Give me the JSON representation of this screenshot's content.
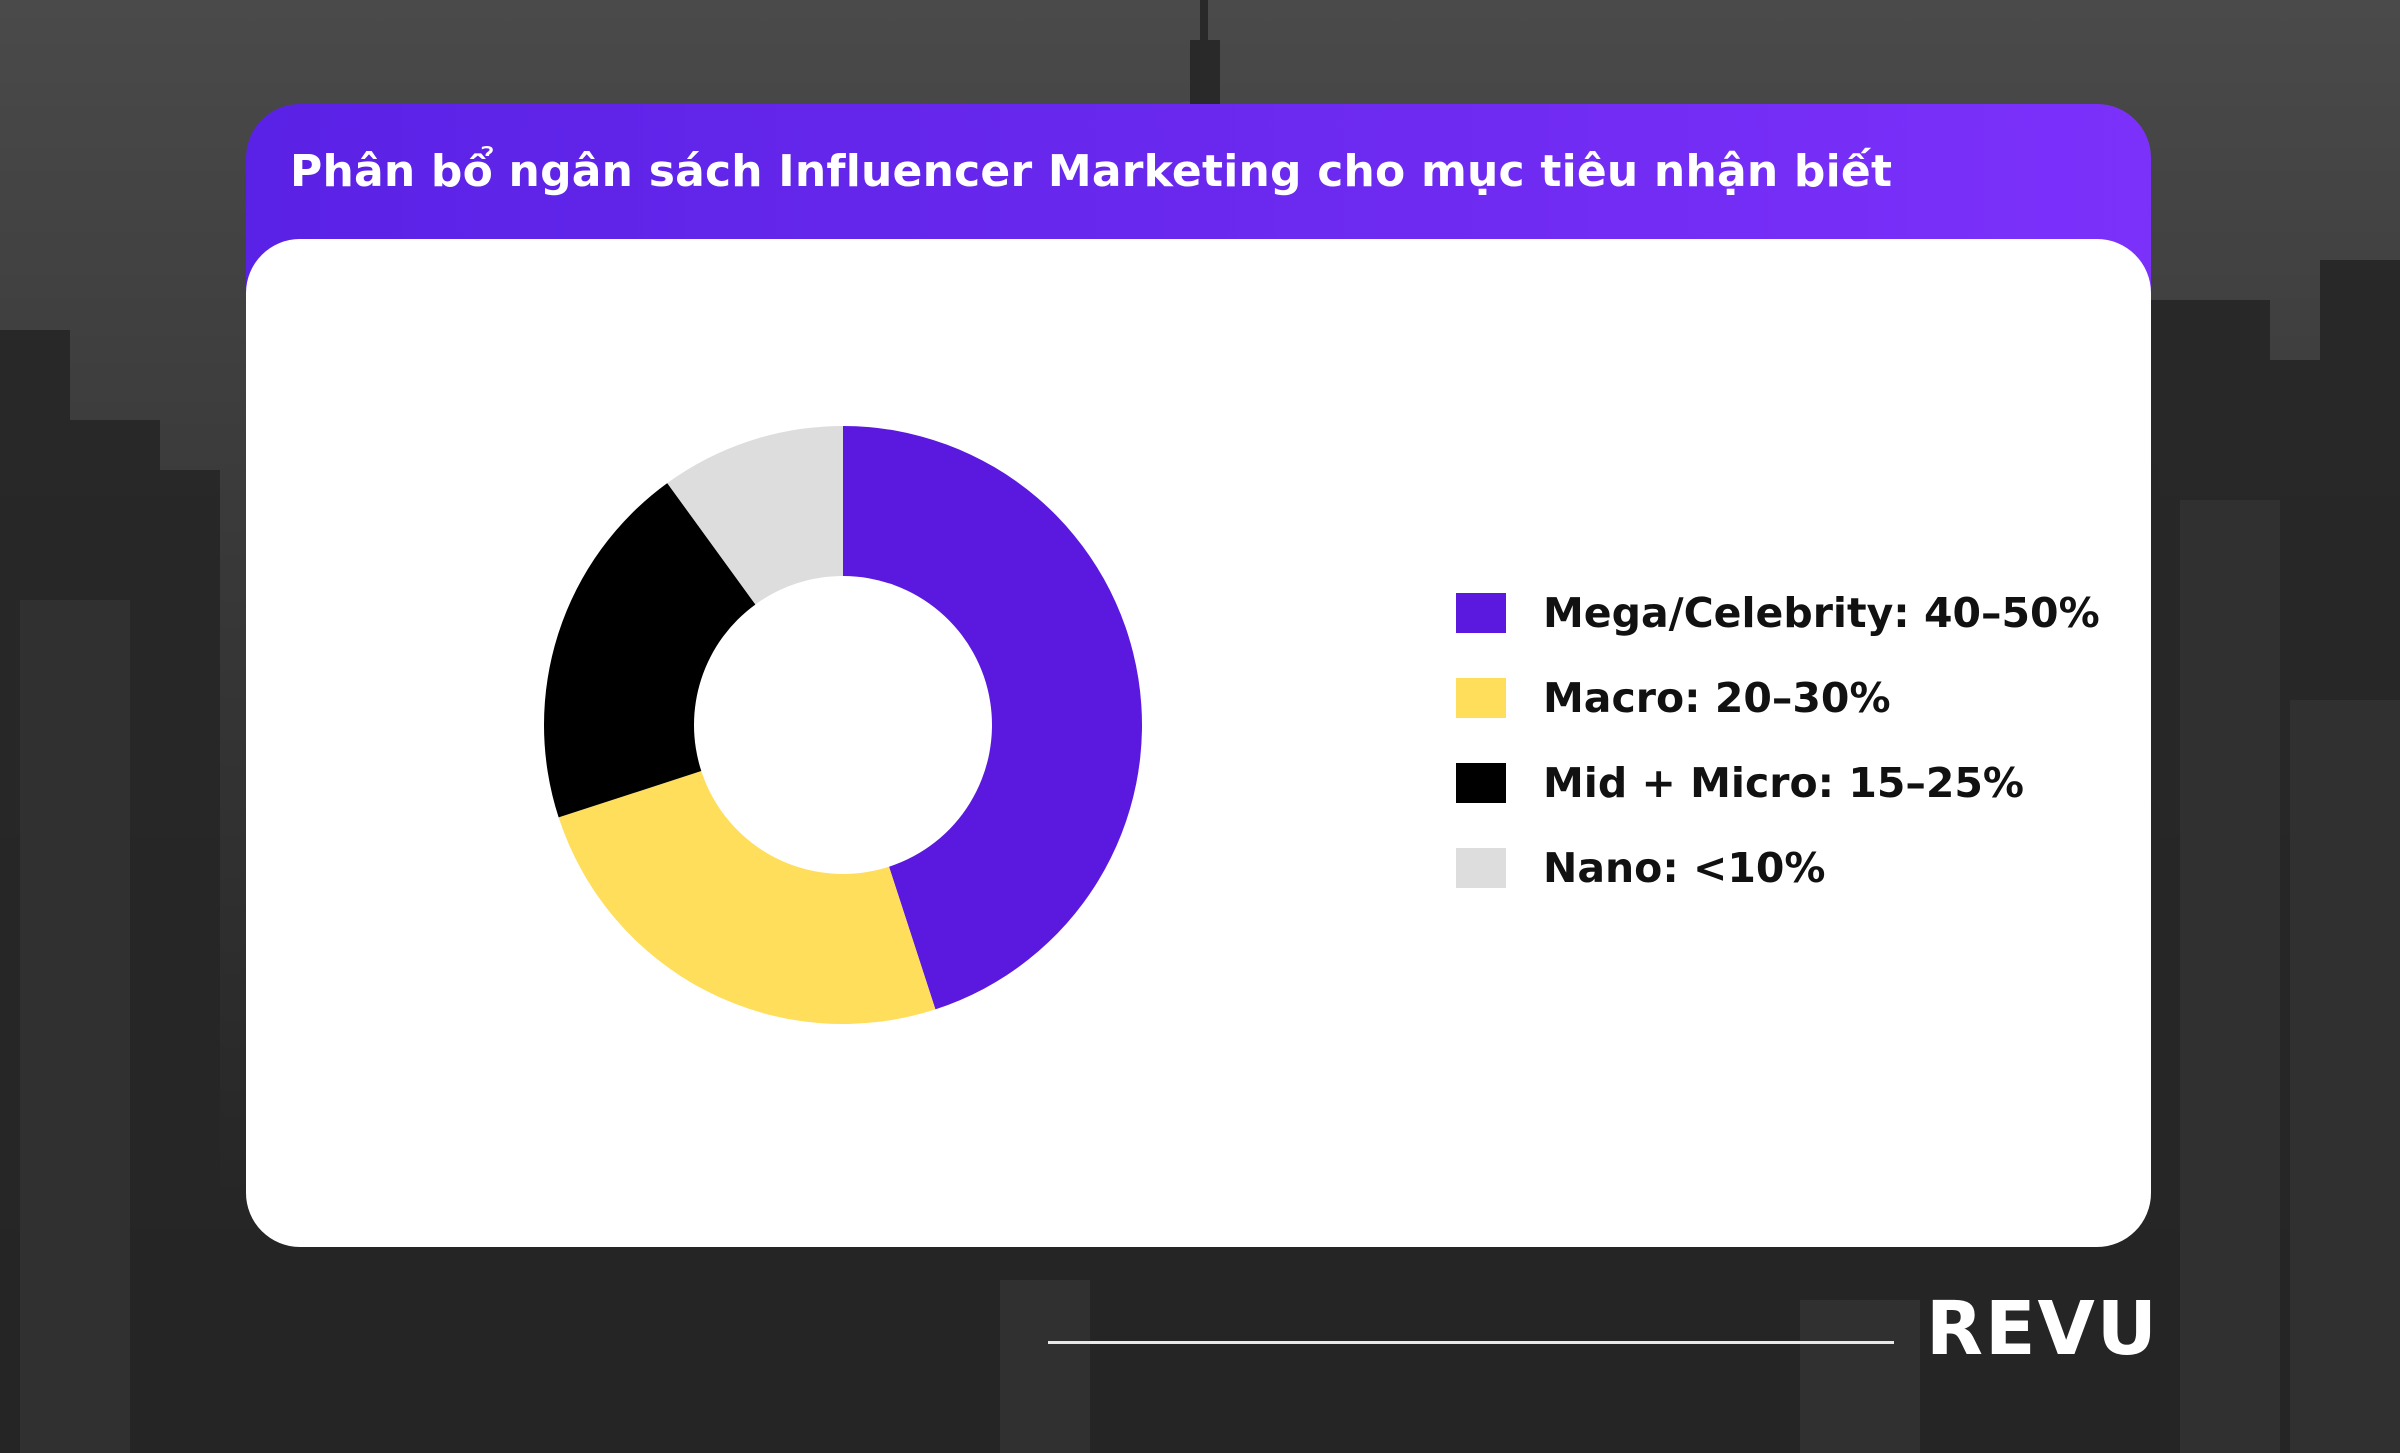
{
  "header": {
    "title": "Phân bổ ngân sách Influencer Marketing cho mục tiêu nhận biết"
  },
  "chart_data": {
    "type": "pie",
    "variant": "donut",
    "title": "Phân bổ ngân sách Influencer Marketing cho mục tiêu nhận biết",
    "categories": [
      "Mega/Celebrity",
      "Macro",
      "Mid + Micro",
      "Nano"
    ],
    "values": [
      45,
      25,
      20,
      10
    ],
    "legend": [
      {
        "label": "Mega/Celebrity: 40–50%",
        "color": "#5b19df"
      },
      {
        "label": "Macro: 20–30%",
        "color": "#ffde5c"
      },
      {
        "label": "Mid + Micro: 15–25%",
        "color": "#000000"
      },
      {
        "label": "Nano: <10%",
        "color": "#dddddd"
      }
    ],
    "legend_position": "right"
  },
  "colors": {
    "header_gradient_start": "#5a22e6",
    "header_gradient_end": "#7c31fb",
    "card_background": "#ffffff"
  },
  "brand": {
    "logo_text": "REVU"
  }
}
